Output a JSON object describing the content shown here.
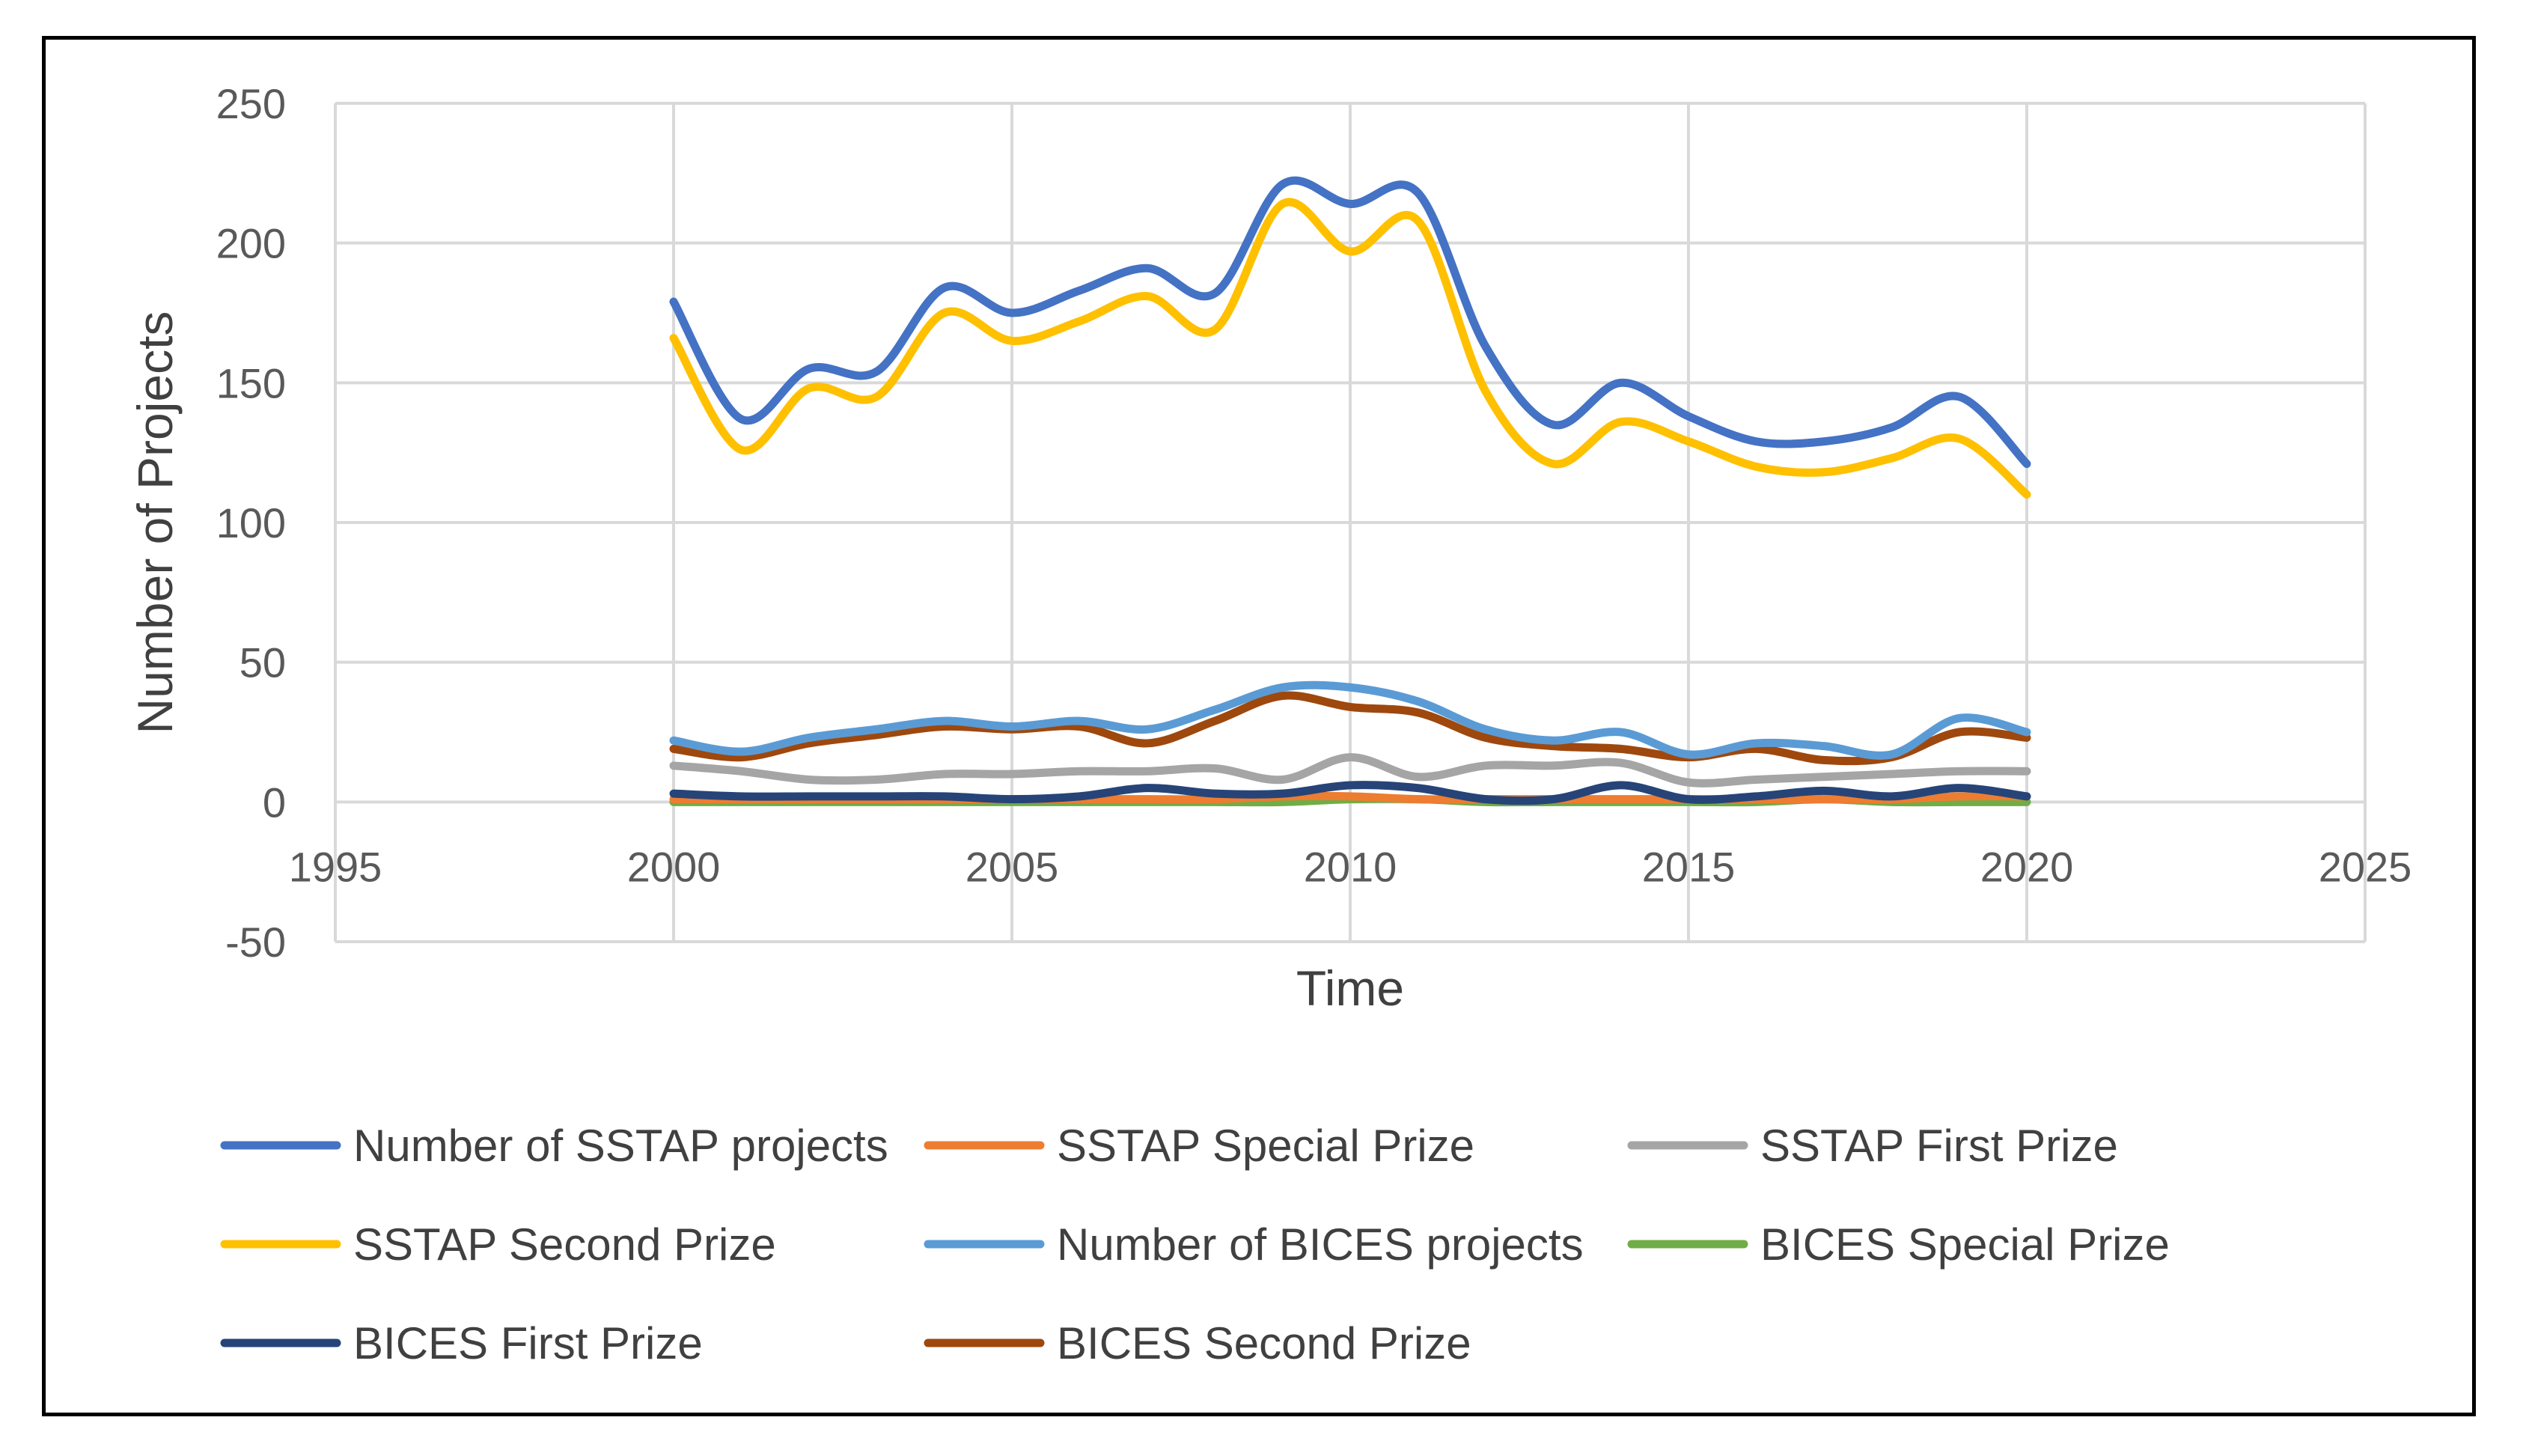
{
  "chart_data": {
    "type": "line",
    "title": "",
    "xlabel": "Time",
    "ylabel": "Number of Projects",
    "xlim": [
      1995,
      2025
    ],
    "ylim": [
      -50,
      250
    ],
    "xticks": [
      1995,
      2000,
      2005,
      2010,
      2015,
      2020,
      2025
    ],
    "yticks": [
      -50,
      0,
      50,
      100,
      150,
      200,
      250
    ],
    "grid": true,
    "legend_position": "bottom",
    "x": [
      2000,
      2001,
      2002,
      2003,
      2004,
      2005,
      2006,
      2007,
      2008,
      2009,
      2010,
      2011,
      2012,
      2013,
      2014,
      2015,
      2016,
      2017,
      2018,
      2019,
      2020
    ],
    "series": [
      {
        "name": "Number of SSTAP projects",
        "color": "#4472C4",
        "values": [
          179,
          137,
          155,
          154,
          184,
          175,
          183,
          191,
          182,
          221,
          214,
          218,
          163,
          135,
          150,
          138,
          129,
          129,
          134,
          145,
          121
        ]
      },
      {
        "name": "SSTAP Special Prize",
        "color": "#ED7D31",
        "values": [
          1,
          1,
          1,
          1,
          1,
          1,
          1,
          1,
          1,
          2,
          2,
          1,
          1,
          1,
          1,
          1,
          1,
          1,
          1,
          2,
          2
        ]
      },
      {
        "name": "SSTAP First Prize",
        "color": "#A5A5A5",
        "values": [
          13,
          11,
          8,
          8,
          10,
          10,
          11,
          11,
          12,
          8,
          16,
          9,
          13,
          13,
          14,
          7,
          8,
          9,
          10,
          11,
          11
        ]
      },
      {
        "name": "SSTAP Second Prize",
        "color": "#FFC000",
        "values": [
          166,
          126,
          148,
          145,
          175,
          165,
          172,
          181,
          169,
          214,
          197,
          208,
          147,
          121,
          136,
          129,
          120,
          118,
          123,
          130,
          110
        ]
      },
      {
        "name": "Number of BICES  projects",
        "color": "#5B9BD5",
        "values": [
          22,
          18,
          23,
          26,
          29,
          27,
          29,
          26,
          33,
          41,
          41,
          36,
          26,
          22,
          25,
          17,
          21,
          20,
          17,
          30,
          25
        ]
      },
      {
        "name": "BICES  Special Prize",
        "color": "#70AD47",
        "values": [
          0,
          0,
          0,
          0,
          0,
          0,
          0,
          0,
          0,
          0,
          1,
          1,
          0,
          0,
          0,
          0,
          0,
          1,
          0,
          0,
          0
        ]
      },
      {
        "name": "BICES  First Prize",
        "color": "#264478",
        "values": [
          3,
          2,
          2,
          2,
          2,
          1,
          2,
          5,
          3,
          3,
          6,
          5,
          1,
          1,
          6,
          1,
          2,
          4,
          2,
          5,
          2
        ]
      },
      {
        "name": "BICES  Second Prize",
        "color": "#9E480E",
        "values": [
          19,
          16,
          21,
          24,
          27,
          26,
          27,
          21,
          29,
          38,
          34,
          32,
          23,
          20,
          19,
          16,
          19,
          15,
          16,
          25,
          23
        ]
      }
    ]
  }
}
